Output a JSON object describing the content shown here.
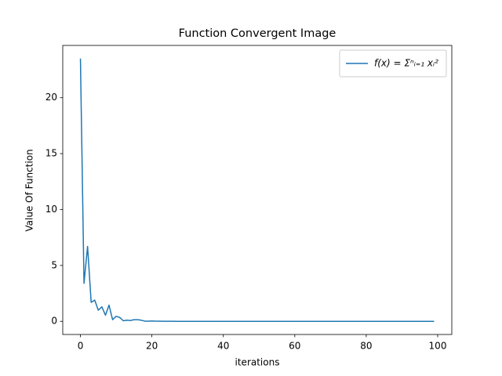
{
  "chart_data": {
    "type": "line",
    "title": "Function Convergent Image",
    "x_label": "iterations",
    "y_label": "Value Of Function",
    "x": [
      0,
      1,
      2,
      3,
      4,
      5,
      6,
      7,
      8,
      9,
      10,
      11,
      12,
      13,
      14,
      15,
      16,
      17,
      18,
      19,
      20,
      21,
      22,
      23,
      24,
      25,
      26,
      27,
      28,
      29,
      30,
      31,
      32,
      33,
      34,
      35,
      36,
      37,
      38,
      39,
      40,
      41,
      42,
      43,
      44,
      45,
      46,
      47,
      48,
      49,
      50,
      51,
      52,
      53,
      54,
      55,
      56,
      57,
      58,
      59,
      60,
      61,
      62,
      63,
      64,
      65,
      66,
      67,
      68,
      69,
      70,
      71,
      72,
      73,
      74,
      75,
      76,
      77,
      78,
      79,
      80,
      81,
      82,
      83,
      84,
      85,
      86,
      87,
      88,
      89,
      90,
      91,
      92,
      93,
      94,
      95,
      96,
      97,
      98,
      99
    ],
    "series": [
      {
        "name": "f(x) = Σⁿᵢ₌₁ xᵢ²",
        "color": "#1f77b4",
        "values": [
          23.5,
          3.4,
          6.7,
          1.7,
          1.9,
          1.0,
          1.3,
          0.55,
          1.45,
          0.15,
          0.45,
          0.35,
          0.05,
          0.1,
          0.08,
          0.15,
          0.15,
          0.1,
          0.02,
          0.02,
          0.03,
          0.02,
          0.02,
          0.01,
          0.01,
          0.01,
          0.01,
          0,
          0,
          0,
          0,
          0,
          0,
          0,
          0,
          0,
          0,
          0,
          0,
          0,
          0,
          0,
          0,
          0,
          0,
          0,
          0,
          0,
          0,
          0,
          0,
          0,
          0,
          0,
          0,
          0,
          0,
          0,
          0,
          0,
          0,
          0,
          0,
          0,
          0,
          0,
          0,
          0,
          0,
          0,
          0,
          0,
          0,
          0,
          0,
          0,
          0,
          0,
          0,
          0,
          0,
          0,
          0,
          0,
          0,
          0,
          0,
          0,
          0,
          0,
          0,
          0,
          0,
          0,
          0,
          0,
          0,
          0,
          0,
          0
        ]
      }
    ],
    "xlim": [
      -4.95,
      103.95
    ],
    "ylim": [
      -1.175,
      24.675
    ],
    "xticks": [
      0,
      20,
      40,
      60,
      80,
      100
    ],
    "yticks": [
      0,
      5,
      10,
      15,
      20
    ],
    "grid": false,
    "legend": "upper right"
  }
}
